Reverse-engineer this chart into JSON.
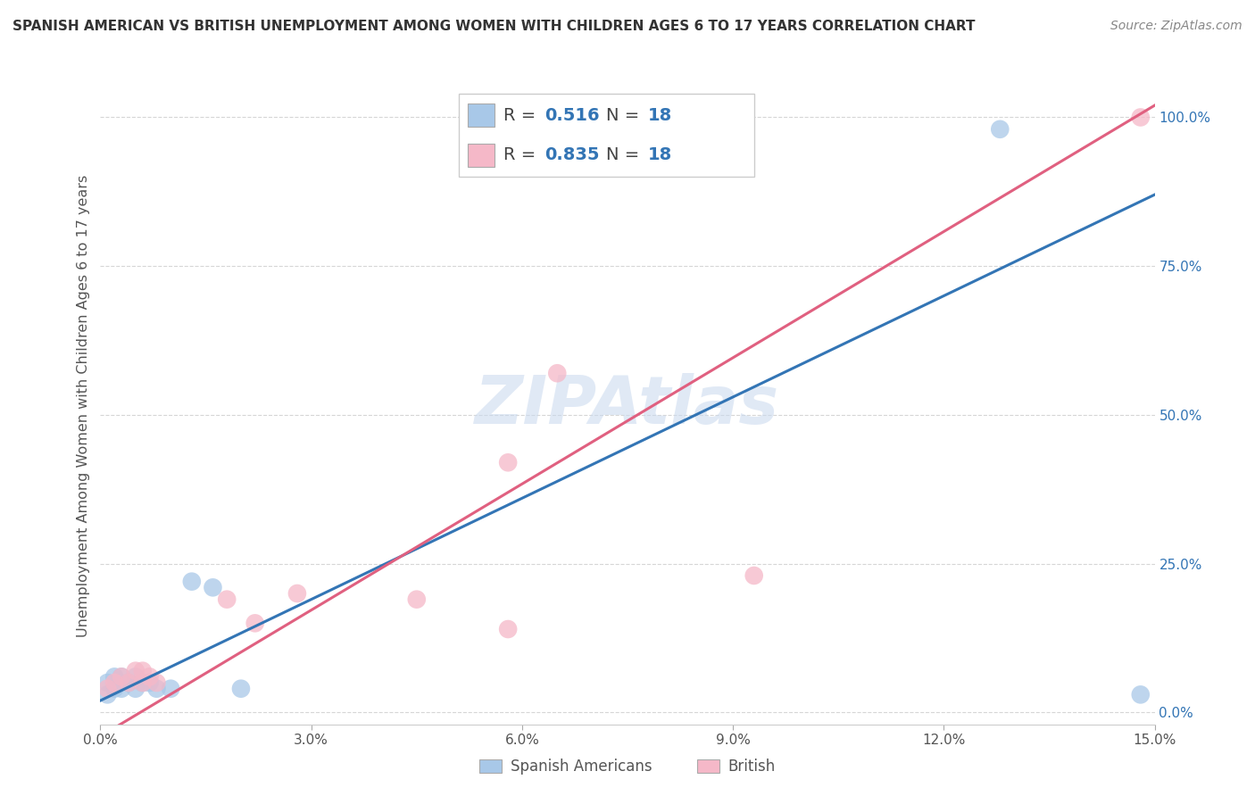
{
  "title": "SPANISH AMERICAN VS BRITISH UNEMPLOYMENT AMONG WOMEN WITH CHILDREN AGES 6 TO 17 YEARS CORRELATION CHART",
  "source": "Source: ZipAtlas.com",
  "ylabel": "Unemployment Among Women with Children Ages 6 to 17 years",
  "xlim": [
    0.0,
    0.15
  ],
  "ylim": [
    -0.02,
    1.05
  ],
  "xticks": [
    0.0,
    0.03,
    0.06,
    0.09,
    0.12,
    0.15
  ],
  "xticklabels": [
    "0.0%",
    "3.0%",
    "6.0%",
    "9.0%",
    "12.0%",
    "15.0%"
  ],
  "yticks_right": [
    0.0,
    0.25,
    0.5,
    0.75,
    1.0
  ],
  "yticklabels_right": [
    "0.0%",
    "25.0%",
    "50.0%",
    "75.0%",
    "100.0%"
  ],
  "watermark": "ZIPAtlas",
  "blue_scatter_x": [
    0.001,
    0.001,
    0.002,
    0.002,
    0.003,
    0.003,
    0.004,
    0.005,
    0.005,
    0.006,
    0.007,
    0.008,
    0.01,
    0.013,
    0.016,
    0.02,
    0.128,
    0.148
  ],
  "blue_scatter_y": [
    0.03,
    0.05,
    0.04,
    0.06,
    0.04,
    0.06,
    0.05,
    0.04,
    0.06,
    0.05,
    0.05,
    0.04,
    0.04,
    0.22,
    0.21,
    0.04,
    0.98,
    0.03
  ],
  "pink_scatter_x": [
    0.001,
    0.002,
    0.003,
    0.004,
    0.005,
    0.006,
    0.006,
    0.007,
    0.008,
    0.018,
    0.022,
    0.028,
    0.045,
    0.058,
    0.058,
    0.065,
    0.093,
    0.148
  ],
  "pink_scatter_y": [
    0.04,
    0.05,
    0.06,
    0.05,
    0.07,
    0.05,
    0.07,
    0.06,
    0.05,
    0.19,
    0.15,
    0.2,
    0.19,
    0.42,
    0.14,
    0.57,
    0.23,
    1.0
  ],
  "blue_line_x": [
    0.0,
    0.15
  ],
  "blue_line_y": [
    0.02,
    0.87
  ],
  "pink_line_x": [
    0.0,
    0.15
  ],
  "pink_line_y": [
    -0.04,
    1.02
  ],
  "blue_scatter_color": "#a8c8e8",
  "pink_scatter_color": "#f5b8c8",
  "blue_line_color": "#3375b5",
  "pink_line_color": "#e06080",
  "legend_R_blue": "0.516",
  "legend_N_blue": "18",
  "legend_R_pink": "0.835",
  "legend_N_pink": "18",
  "legend_label_blue": "Spanish Americans",
  "legend_label_pink": "British",
  "R_color": "#3375b5",
  "background_color": "#ffffff",
  "grid_color": "#cccccc",
  "title_color": "#333333",
  "source_color": "#888888",
  "ylabel_color": "#555555"
}
